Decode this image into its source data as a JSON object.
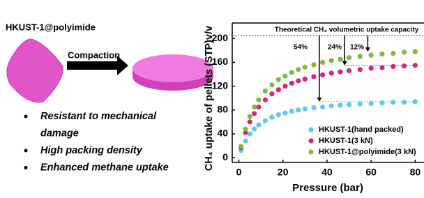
{
  "scheme": {
    "material": "HKUST-1@polyimide",
    "process": "Compaction",
    "bullets": [
      [
        "Resistant to mechanical",
        "damage"
      ],
      [
        "High packing density"
      ],
      [
        "Enhanced methane uptake"
      ]
    ]
  },
  "chart_data": {
    "type": "scatter",
    "xlabel": "Pressure (bar)",
    "ylabel": "CH₄ uptake of pellets (STP)v/v",
    "xlim": [
      -3,
      84
    ],
    "ylim": [
      -8,
      226
    ],
    "xticks": [
      0,
      20,
      40,
      60,
      80
    ],
    "yticks": [
      0,
      40,
      80,
      120,
      160,
      200
    ],
    "x": [
      1,
      3,
      5,
      7,
      9,
      12,
      15,
      18,
      21,
      24,
      27,
      30,
      34,
      38,
      42,
      46,
      50,
      55,
      60,
      65,
      70,
      75,
      80
    ],
    "series": [
      {
        "name": "HKUST-1(hand packed)",
        "color": "#5ec8f2",
        "values": [
          12,
          28,
          40,
          48,
          55,
          62,
          68,
          72,
          75,
          78,
          80,
          82,
          84,
          85,
          87,
          88,
          89,
          90,
          91,
          92,
          93,
          93,
          94
        ]
      },
      {
        "name": "HKUST-1(3 kN)",
        "color": "#d8247c",
        "values": [
          17,
          42,
          60,
          74,
          85,
          97,
          107,
          114,
          120,
          125,
          129,
          132,
          136,
          139,
          142,
          144,
          146,
          148,
          150,
          151,
          153,
          154,
          155
        ]
      },
      {
        "name": "HKUST-1@polyimide(3 kN)",
        "color": "#7dba3e",
        "values": [
          19,
          48,
          69,
          85,
          97,
          112,
          122,
          131,
          137,
          143,
          148,
          152,
          156,
          160,
          163,
          165,
          168,
          170,
          172,
          174,
          175,
          177,
          178
        ]
      }
    ],
    "reference_line": {
      "label": "Theoretical CH₄ volumetric uptake capacity",
      "value": 205,
      "color": "#c0392b"
    },
    "annotations": [
      "54%",
      "24%",
      "12%"
    ]
  }
}
